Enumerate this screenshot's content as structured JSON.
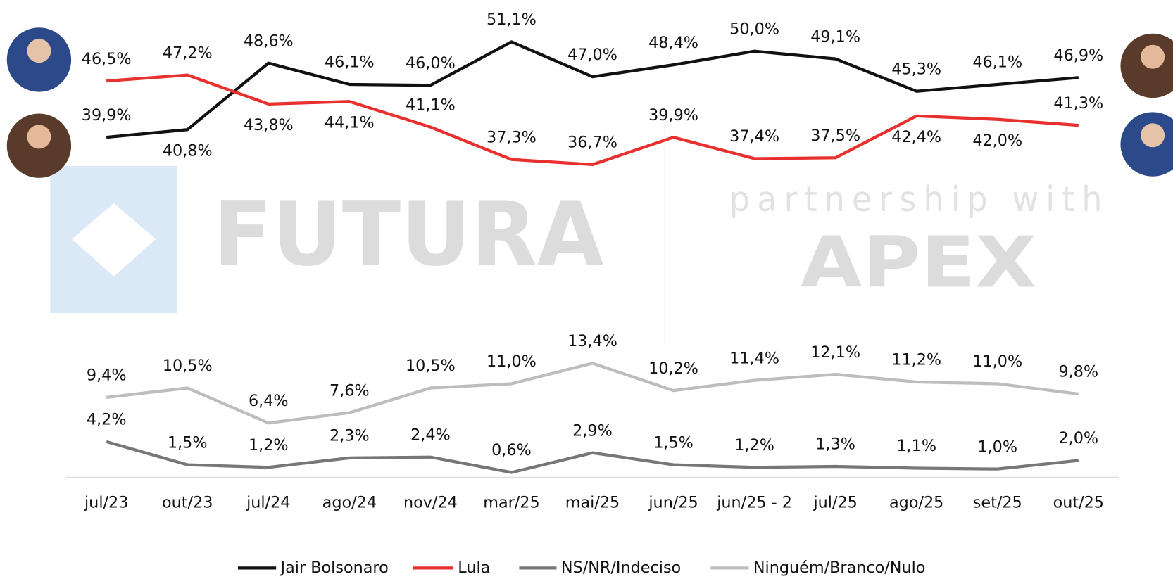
{
  "chart_data": {
    "type": "line",
    "categories": [
      "jul/23",
      "out/23",
      "jul/24",
      "ago/24",
      "nov/24",
      "mar/25",
      "mai/25",
      "jun/25",
      "jun/25 - 2",
      "jul/25",
      "ago/25",
      "set/25",
      "out/25"
    ],
    "series": [
      {
        "name": "Jair Bolsonaro",
        "color": "#111111",
        "values": [
          39.9,
          40.8,
          48.6,
          46.1,
          46.0,
          51.1,
          47.0,
          48.4,
          50.0,
          49.1,
          45.3,
          46.1,
          46.9
        ],
        "value_labels": [
          "39,9%",
          "40,8%",
          "48,6%",
          "46,1%",
          "46,0%",
          "51,1%",
          "47,0%",
          "48,4%",
          "50,0%",
          "49,1%",
          "45,3%",
          "46,1%",
          "46,9%"
        ]
      },
      {
        "name": "Lula",
        "color": "#e8302f",
        "values": [
          46.5,
          47.2,
          43.8,
          44.1,
          41.1,
          37.3,
          36.7,
          39.9,
          37.4,
          37.5,
          42.4,
          42.0,
          41.3
        ],
        "value_labels": [
          "46,5%",
          "47,2%",
          "43,8%",
          "44,1%",
          "41,1%",
          "37,3%",
          "36,7%",
          "39,9%",
          "37,4%",
          "37,5%",
          "42,4%",
          "42,0%",
          "41,3%"
        ]
      },
      {
        "name": "NS/NR/Indeciso",
        "color": "#777777",
        "values": [
          4.2,
          1.5,
          1.2,
          2.3,
          2.4,
          0.6,
          2.9,
          1.5,
          1.2,
          1.3,
          1.1,
          1.0,
          2.0
        ],
        "value_labels": [
          "4,2%",
          "1,5%",
          "1,2%",
          "2,3%",
          "2,4%",
          "0,6%",
          "2,9%",
          "1,5%",
          "1,2%",
          "1,3%",
          "1,1%",
          "1,0%",
          "2,0%"
        ]
      },
      {
        "name": "Ninguém/Branco/Nulo",
        "color": "#bdbdbd",
        "values": [
          9.4,
          10.5,
          6.4,
          7.6,
          10.5,
          11.0,
          13.4,
          10.2,
          11.4,
          12.1,
          11.2,
          11.0,
          9.8
        ],
        "value_labels": [
          "9,4%",
          "10,5%",
          "6,4%",
          "7,6%",
          "10,5%",
          "11,0%",
          "13,4%",
          "10,2%",
          "11,4%",
          "12,1%",
          "11,2%",
          "11,0%",
          "9,8%"
        ]
      }
    ],
    "ylim": [
      0,
      56
    ],
    "grid": false,
    "legend": "bottom",
    "watermark": {
      "brand": "FUTURA",
      "partner_text": "partnership with",
      "partner": "APEX"
    }
  }
}
